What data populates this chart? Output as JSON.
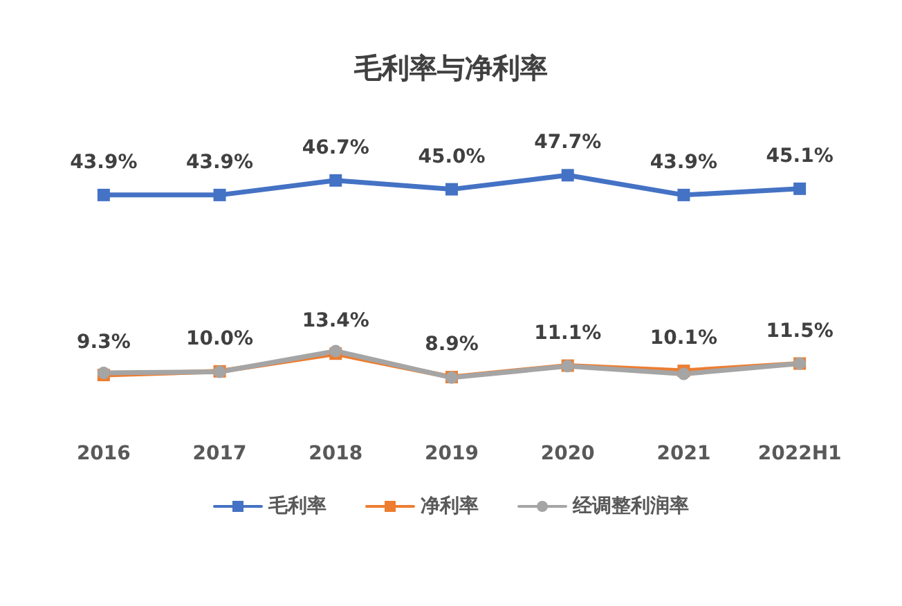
{
  "chart_data": {
    "type": "line",
    "title": "毛利率与净利率",
    "categories": [
      "2016",
      "2017",
      "2018",
      "2019",
      "2020",
      "2021",
      "2022H1"
    ],
    "series": [
      {
        "name": "毛利率",
        "color": "#4472c4",
        "marker": "square",
        "values": [
          43.9,
          43.9,
          46.7,
          45.0,
          47.7,
          43.9,
          45.1
        ],
        "value_labels": [
          "43.9%",
          "43.9%",
          "46.7%",
          "45.0%",
          "47.7%",
          "43.9%",
          "45.1%"
        ]
      },
      {
        "name": "净利率",
        "color": "#ed7d31",
        "marker": "square",
        "values": [
          9.3,
          10.0,
          13.4,
          8.9,
          11.1,
          10.1,
          11.5
        ],
        "value_labels": [
          "9.3%",
          "10.0%",
          "13.4%",
          "8.9%",
          "11.1%",
          "10.1%",
          "11.5%"
        ]
      },
      {
        "name": "经调整利润率",
        "color": "#a5a5a5",
        "marker": "circle",
        "values": [
          9.7,
          9.9,
          13.9,
          8.8,
          11.0,
          9.5,
          11.5
        ]
      }
    ],
    "legend": "bottom",
    "tick_labels": "x"
  }
}
